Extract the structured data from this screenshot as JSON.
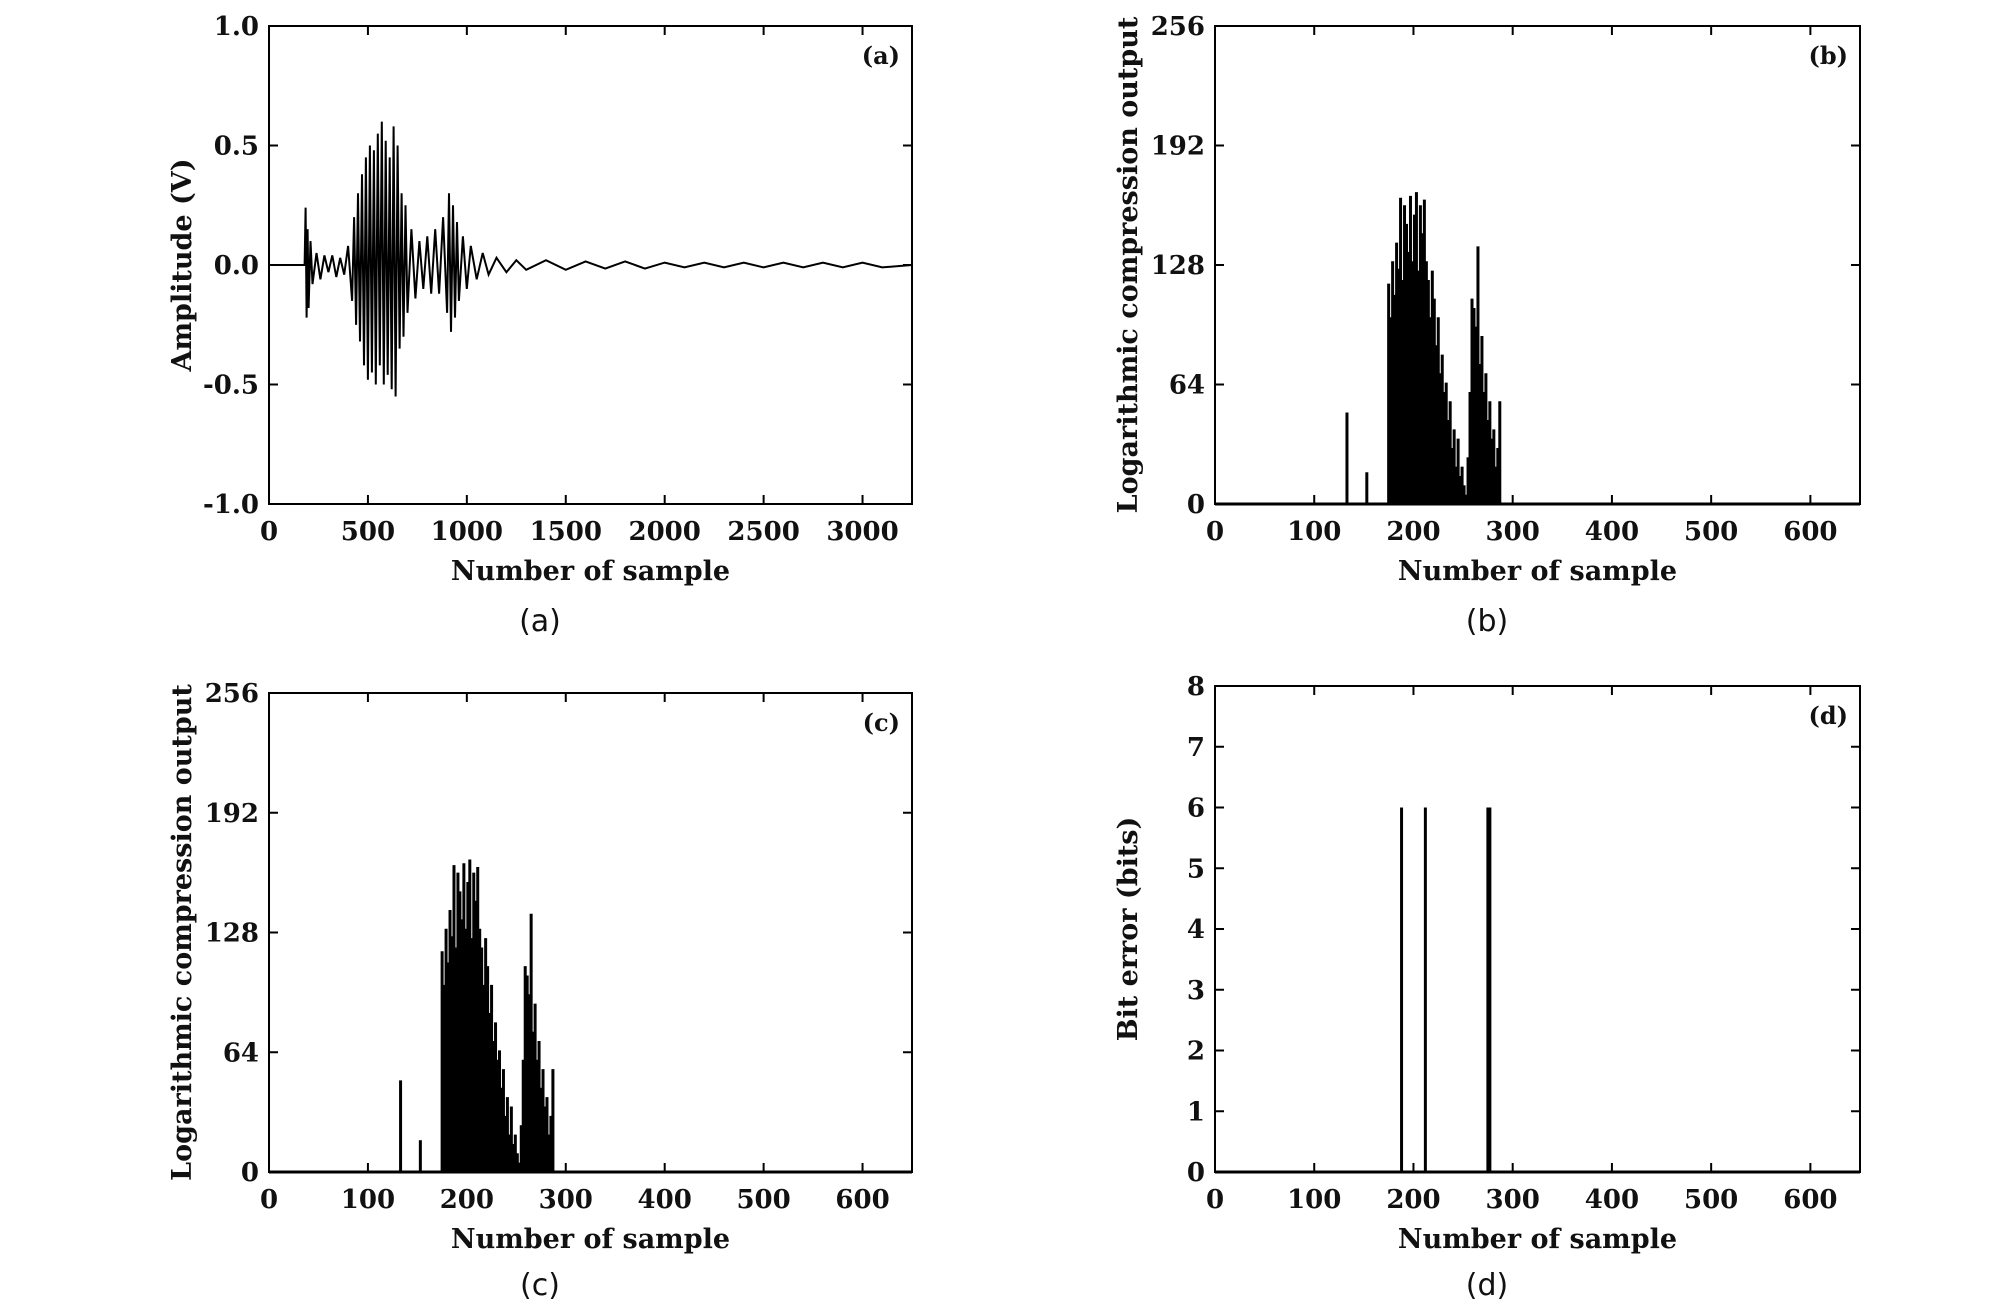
{
  "chart_data": [
    {
      "id": "a",
      "type": "line",
      "panel_label": "(a)",
      "caption": "(a)",
      "xlabel": "Number of sample",
      "ylabel": "Amplitude (V)",
      "xlim": [
        0,
        3250
      ],
      "ylim": [
        -1.0,
        1.0
      ],
      "xticks": [
        0,
        500,
        1000,
        1500,
        2000,
        2500,
        3000
      ],
      "xtick_labels": [
        "0",
        "500",
        "1000",
        "1500",
        "2000",
        "2500",
        "3000"
      ],
      "yticks": [
        -1.0,
        -0.5,
        0.0,
        0.5,
        1.0
      ],
      "ytick_labels": [
        "-1.0",
        "-0.5",
        "0.0",
        "0.5",
        "1.0"
      ],
      "series": [
        {
          "x": [
            0,
            180,
            185,
            190,
            195,
            200,
            210,
            220,
            240,
            260,
            280,
            300,
            320,
            340,
            360,
            380,
            400,
            420,
            430,
            440,
            450,
            460,
            470,
            480,
            490,
            500,
            510,
            520,
            530,
            540,
            550,
            560,
            570,
            580,
            590,
            600,
            610,
            620,
            630,
            640,
            650,
            660,
            670,
            680,
            690,
            700,
            720,
            740,
            760,
            780,
            800,
            820,
            840,
            860,
            880,
            900,
            910,
            920,
            930,
            940,
            950,
            960,
            980,
            1000,
            1020,
            1050,
            1080,
            1110,
            1150,
            1200,
            1250,
            1300,
            1400,
            1500,
            1600,
            1700,
            1800,
            1900,
            2000,
            2100,
            2200,
            2300,
            2400,
            2500,
            2600,
            2700,
            2800,
            2900,
            3000,
            3100,
            3250
          ],
          "y": [
            0.0,
            0.0,
            0.24,
            -0.22,
            0.15,
            -0.18,
            0.1,
            -0.08,
            0.05,
            -0.06,
            0.04,
            -0.03,
            0.04,
            -0.05,
            0.03,
            -0.04,
            0.08,
            -0.15,
            0.2,
            -0.25,
            0.3,
            -0.32,
            0.38,
            -0.42,
            0.45,
            -0.48,
            0.5,
            -0.45,
            0.48,
            -0.5,
            0.55,
            -0.42,
            0.6,
            -0.5,
            0.52,
            -0.46,
            0.45,
            -0.52,
            0.58,
            -0.55,
            0.5,
            -0.35,
            0.3,
            -0.3,
            0.25,
            -0.2,
            0.15,
            -0.14,
            0.1,
            -0.1,
            0.12,
            -0.12,
            0.15,
            -0.12,
            0.2,
            -0.2,
            0.3,
            -0.28,
            0.25,
            -0.22,
            0.18,
            -0.15,
            0.12,
            -0.1,
            0.08,
            -0.06,
            0.05,
            -0.04,
            0.03,
            -0.03,
            0.02,
            -0.02,
            0.02,
            -0.02,
            0.015,
            -0.015,
            0.015,
            -0.015,
            0.01,
            -0.01,
            0.01,
            -0.01,
            0.01,
            -0.01,
            0.01,
            -0.01,
            0.01,
            -0.01,
            0.01,
            -0.01,
            0.0
          ]
        }
      ]
    },
    {
      "id": "b",
      "type": "bar",
      "panel_label": "(b)",
      "caption": "(b)",
      "xlabel": "Number of sample",
      "ylabel": "Logarithmic compression output",
      "xlim": [
        0,
        650
      ],
      "ylim": [
        0,
        256
      ],
      "xticks": [
        0,
        100,
        200,
        300,
        400,
        500,
        600
      ],
      "xtick_labels": [
        "0",
        "100",
        "200",
        "300",
        "400",
        "500",
        "600"
      ],
      "yticks": [
        0,
        64,
        128,
        192,
        256
      ],
      "ytick_labels": [
        "0",
        "64",
        "128",
        "192",
        "256"
      ],
      "series": [
        {
          "x": [
            133,
            153,
            175,
            177,
            179,
            181,
            183,
            185,
            187,
            189,
            191,
            193,
            195,
            197,
            199,
            201,
            203,
            205,
            207,
            209,
            211,
            213,
            215,
            217,
            219,
            221,
            223,
            225,
            227,
            229,
            231,
            233,
            235,
            237,
            239,
            241,
            243,
            245,
            247,
            249,
            251,
            253,
            255,
            257,
            259,
            261,
            263,
            265,
            267,
            269,
            271,
            273,
            275,
            277,
            279,
            281,
            283,
            285,
            287
          ],
          "y": [
            49,
            17,
            118,
            100,
            130,
            112,
            140,
            126,
            164,
            120,
            160,
            150,
            135,
            165,
            130,
            155,
            167,
            125,
            160,
            145,
            163,
            130,
            120,
            100,
            125,
            110,
            85,
            100,
            70,
            80,
            60,
            65,
            45,
            55,
            30,
            40,
            20,
            35,
            15,
            20,
            10,
            5,
            25,
            60,
            110,
            105,
            95,
            138,
            75,
            90,
            60,
            70,
            45,
            55,
            35,
            40,
            20,
            30,
            55
          ]
        }
      ]
    },
    {
      "id": "c",
      "type": "bar",
      "panel_label": "(c)",
      "caption": "(c)",
      "xlabel": "Number of sample",
      "ylabel": "Logarithmic compression output",
      "xlim": [
        0,
        650
      ],
      "ylim": [
        0,
        256
      ],
      "xticks": [
        0,
        100,
        200,
        300,
        400,
        500,
        600
      ],
      "xtick_labels": [
        "0",
        "100",
        "200",
        "300",
        "400",
        "500",
        "600"
      ],
      "yticks": [
        0,
        64,
        128,
        192,
        256
      ],
      "ytick_labels": [
        "0",
        "64",
        "128",
        "192",
        "256"
      ],
      "series": [
        {
          "x": [
            133,
            153,
            175,
            177,
            179,
            181,
            183,
            185,
            187,
            189,
            191,
            193,
            195,
            197,
            199,
            201,
            203,
            205,
            207,
            209,
            211,
            213,
            215,
            217,
            219,
            221,
            223,
            225,
            227,
            229,
            231,
            233,
            235,
            237,
            239,
            241,
            243,
            245,
            247,
            249,
            251,
            253,
            255,
            257,
            259,
            261,
            263,
            265,
            267,
            269,
            271,
            273,
            275,
            277,
            279,
            281,
            283,
            285,
            287
          ],
          "y": [
            49,
            17,
            118,
            100,
            130,
            112,
            140,
            126,
            164,
            120,
            160,
            150,
            135,
            165,
            130,
            155,
            167,
            125,
            160,
            145,
            163,
            130,
            120,
            100,
            125,
            110,
            85,
            100,
            70,
            80,
            60,
            65,
            45,
            55,
            30,
            40,
            20,
            35,
            15,
            20,
            10,
            5,
            25,
            60,
            110,
            105,
            95,
            138,
            75,
            90,
            60,
            70,
            45,
            55,
            35,
            40,
            20,
            30,
            55
          ]
        }
      ]
    },
    {
      "id": "d",
      "type": "bar",
      "panel_label": "(d)",
      "caption": "(d)",
      "xlabel": "Number of sample",
      "ylabel": "Bit error (bits)",
      "xlim": [
        0,
        650
      ],
      "ylim": [
        0,
        8
      ],
      "xticks": [
        0,
        100,
        200,
        300,
        400,
        500,
        600
      ],
      "xtick_labels": [
        "0",
        "100",
        "200",
        "300",
        "400",
        "500",
        "600"
      ],
      "yticks": [
        0,
        1,
        2,
        3,
        4,
        5,
        6,
        7,
        8
      ],
      "ytick_labels": [
        "0",
        "1",
        "2",
        "3",
        "4",
        "5",
        "6",
        "7",
        "8"
      ],
      "series": [
        {
          "x": [
            188,
            212,
            275,
            277
          ],
          "y": [
            6,
            6,
            6,
            6
          ]
        }
      ]
    }
  ]
}
